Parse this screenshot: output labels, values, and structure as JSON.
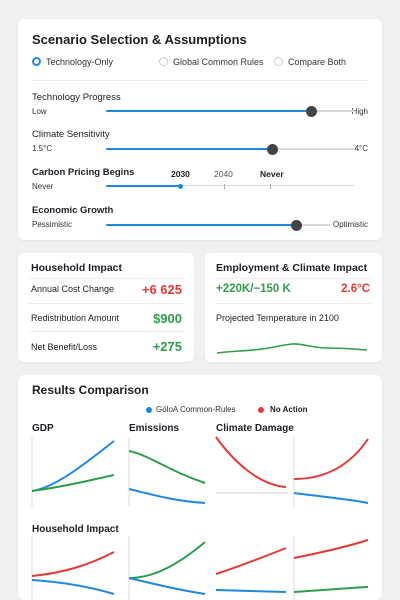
{
  "scenario": {
    "title": "Scenario Selection & Assumptions",
    "options": [
      {
        "label": "Technology-Only",
        "selected": true
      },
      {
        "label": "Global Common Rules",
        "selected": false
      },
      {
        "label": "Compare Both",
        "selected": false
      }
    ],
    "sliders": {
      "technology": {
        "name": "Technology Progress",
        "min_label": "Low",
        "max_label": "High",
        "level": 0.83
      },
      "climate": {
        "name": "Climate Sensitivity",
        "min_label": "1.5°C",
        "max_label": "4°C",
        "level": 0.67
      },
      "carbon": {
        "name": "Carbon Pricing Begins",
        "min_label": "Never",
        "marks": [
          "2030",
          "2040",
          "Never"
        ],
        "selected": "2030",
        "level": 0.3
      },
      "growth": {
        "name": "Economic Growth",
        "min_label": "Pessimistic",
        "max_label": "Optimistic",
        "level": 0.85
      }
    }
  },
  "household": {
    "title": "Household Impact",
    "rows": [
      {
        "label": "Annual Cost Change",
        "value": "+6 625",
        "color": "#e53935"
      },
      {
        "label": "Redistribution Amount",
        "value": "$900",
        "color": "#2e9e4a"
      },
      {
        "label": "Net Benefit/Loss",
        "value": "+275",
        "color": "#2e9e4a"
      }
    ]
  },
  "employment": {
    "title": "Employment & Climate Impact",
    "jobs_value": "+220K/−150 K",
    "temp_value": "2.6°C",
    "temp_label": "Projected Temperature in 2100"
  },
  "results": {
    "title": "Results Comparison",
    "legend": [
      {
        "label": "GöloA Common-Rules",
        "color": "#1e88e5"
      },
      {
        "label": "No Action",
        "color": "#e53935"
      }
    ],
    "panel_titles": {
      "gdp": "GDP",
      "emissions": "Emissions",
      "damage": "Climate Damage",
      "household": "Household Impact"
    }
  },
  "colors": {
    "blue": "#1e88e5",
    "red": "#e53935",
    "green": "#2e9e4a"
  }
}
